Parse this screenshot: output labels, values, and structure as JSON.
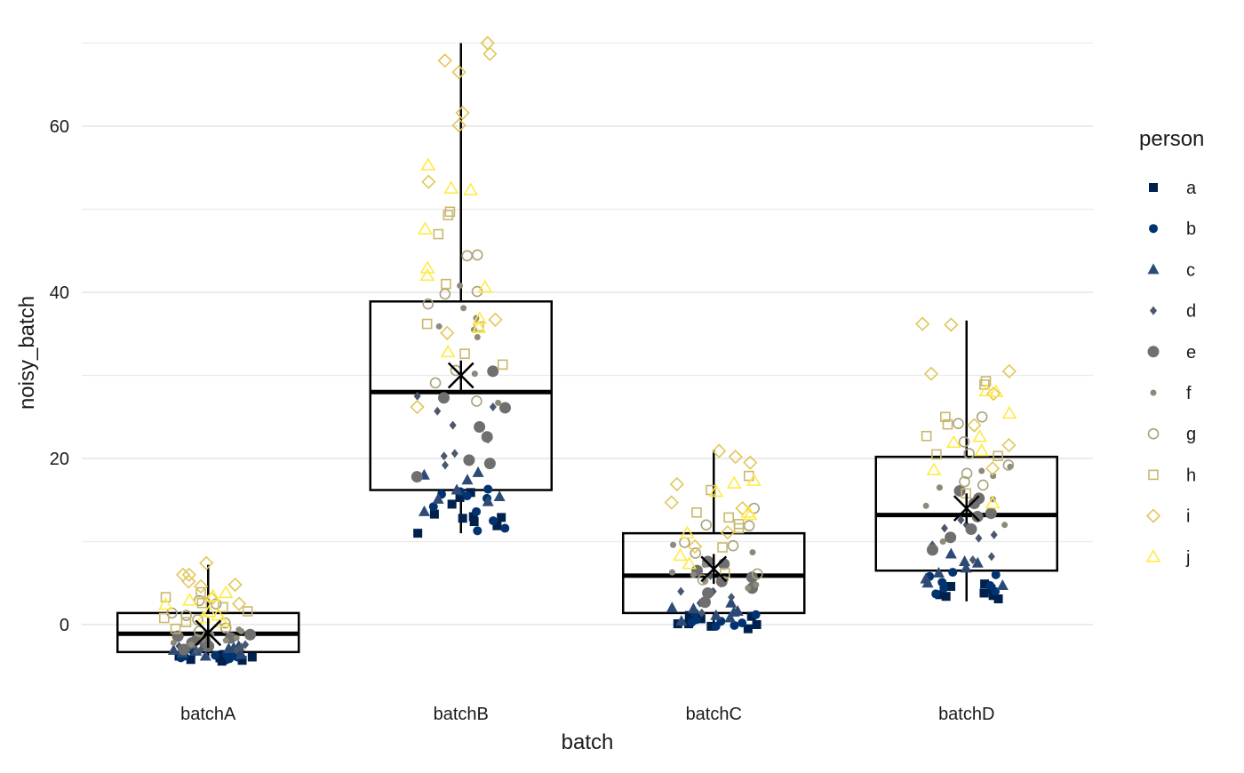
{
  "chart_data": {
    "type": "box",
    "title": "",
    "xlabel": "batch",
    "ylabel": "noisy_batch",
    "ylim": [
      -10,
      70
    ],
    "yticks": [
      0,
      20,
      40,
      60
    ],
    "grid": true,
    "legend_position": "right",
    "legend": {
      "title": "person",
      "entries": [
        {
          "label": "a",
          "shape": "square-filled",
          "color": "#00204D"
        },
        {
          "label": "b",
          "shape": "circle-filled",
          "color": "#00336F"
        },
        {
          "label": "c",
          "shape": "triangle-filled",
          "color": "#2D4A76"
        },
        {
          "label": "d",
          "shape": "diamond-filled",
          "color": "#4A576C"
        },
        {
          "label": "e",
          "shape": "circle-filled-large",
          "color": "#6F6F70"
        },
        {
          "label": "f",
          "shape": "circle-filled-small",
          "color": "#8C8A7A"
        },
        {
          "label": "g",
          "shape": "circle-open",
          "color": "#AAA27A"
        },
        {
          "label": "h",
          "shape": "square-open",
          "color": "#C9B86D"
        },
        {
          "label": "i",
          "shape": "diamond-open",
          "color": "#E2C659"
        },
        {
          "label": "j",
          "shape": "triangle-open",
          "color": "#FFEA46"
        }
      ]
    },
    "categories": [
      "batchA",
      "batchB",
      "batchC",
      "batchD"
    ],
    "boxes": [
      {
        "category": "batchA",
        "q1": -3.3,
        "median": -1.1,
        "q3": 1.4,
        "whisker_low": -4.3,
        "whisker_high": 7.2,
        "mean": -1.0
      },
      {
        "category": "batchB",
        "q1": 16.2,
        "median": 28.0,
        "q3": 38.9,
        "whisker_low": 11.0,
        "whisker_high": 70.0,
        "mean": 30.0
      },
      {
        "category": "batchC",
        "q1": 1.4,
        "median": 5.9,
        "q3": 11.0,
        "whisker_low": -0.6,
        "whisker_high": 21.0,
        "mean": 6.7
      },
      {
        "category": "batchD",
        "q1": 6.5,
        "median": 13.2,
        "q3": 20.2,
        "whisker_low": 2.8,
        "whisker_high": 36.6,
        "mean": 14.0
      }
    ],
    "points": [
      {
        "category": "batchA",
        "person": "a",
        "values": [
          -4.4,
          -4.2,
          -4.0,
          -3.9,
          -4.2,
          -3.6,
          -3.8,
          -4.3
        ]
      },
      {
        "category": "batchA",
        "person": "b",
        "values": [
          -3.6,
          -3.9,
          -4.1,
          -3.3,
          -3.5,
          -4.0,
          -3.7,
          -3.8
        ]
      },
      {
        "category": "batchA",
        "person": "c",
        "values": [
          -3.4,
          -2.8,
          -3.6,
          -2.6,
          -3.1,
          -3.8,
          -2.9,
          -3.2
        ]
      },
      {
        "category": "batchA",
        "person": "d",
        "values": [
          -2.9,
          -3.2,
          -2.4,
          -2.7,
          -3.0,
          -2.2,
          -3.1,
          -2.6
        ]
      },
      {
        "category": "batchA",
        "person": "e",
        "values": [
          -1.4,
          -2.2,
          -1.8,
          -2.6,
          -1.2,
          -2.0,
          -1.6,
          -3.0
        ]
      },
      {
        "category": "batchA",
        "person": "f",
        "values": [
          -1.8,
          -0.8,
          -1.6,
          -2.4,
          -1.2,
          -0.6,
          -1.9,
          -2.2
        ]
      },
      {
        "category": "batchA",
        "person": "g",
        "values": [
          2.5,
          1.4,
          0.2,
          2.9,
          -0.4,
          1.1,
          0.6,
          -0.8
        ]
      },
      {
        "category": "batchA",
        "person": "h",
        "values": [
          3.9,
          1.6,
          2.6,
          3.3,
          0.3,
          -0.5,
          2.1,
          0.8
        ]
      },
      {
        "category": "batchA",
        "person": "i",
        "values": [
          6.0,
          5.2,
          4.6,
          6.0,
          4.8,
          7.4,
          3.1,
          2.5
        ]
      },
      {
        "category": "batchA",
        "person": "j",
        "values": [
          1.1,
          3.8,
          2.4,
          3.4,
          0.8,
          1.5,
          0.3,
          2.9
        ]
      },
      {
        "category": "batchB",
        "person": "a",
        "values": [
          15.3,
          12.9,
          13.3,
          12.8,
          11.9,
          15.9,
          11.0,
          13.0,
          12.4,
          14.5
        ]
      },
      {
        "category": "batchB",
        "person": "b",
        "values": [
          16.3,
          11.3,
          15.7,
          15.2,
          11.6,
          16.0,
          14.2,
          15.5,
          13.6,
          12.5
        ]
      },
      {
        "category": "batchB",
        "person": "c",
        "values": [
          17.4,
          18.3,
          18.0,
          15.4,
          13.6,
          15.1,
          16.2,
          14.8
        ]
      },
      {
        "category": "batchB",
        "person": "d",
        "values": [
          20.3,
          26.2,
          25.7,
          22.3,
          24.0,
          20.6,
          27.5,
          19.2
        ]
      },
      {
        "category": "batchB",
        "person": "e",
        "values": [
          23.8,
          19.4,
          22.6,
          26.1,
          19.8,
          30.5,
          27.3,
          17.8
        ]
      },
      {
        "category": "batchB",
        "person": "f",
        "values": [
          35.9,
          38.1,
          35.5,
          34.6,
          36.9,
          40.8,
          30.2,
          26.7
        ]
      },
      {
        "category": "batchB",
        "person": "g",
        "values": [
          40.1,
          38.6,
          44.4,
          29.1,
          26.9,
          30.6,
          39.8,
          44.5
        ]
      },
      {
        "category": "batchB",
        "person": "h",
        "values": [
          49.3,
          49.7,
          47.0,
          41.0,
          36.2,
          32.6,
          31.3,
          35.9
        ]
      },
      {
        "category": "batchB",
        "person": "i",
        "values": [
          61.6,
          68.7,
          70.0,
          67.9,
          66.5,
          60.1,
          53.3,
          36.7,
          35.1,
          26.2
        ]
      },
      {
        "category": "batchB",
        "person": "j",
        "values": [
          52.3,
          52.5,
          47.6,
          55.3,
          42.0,
          42.9,
          40.6,
          36.8,
          35.7,
          32.8
        ]
      },
      {
        "category": "batchC",
        "person": "a",
        "values": [
          0.1,
          -0.2,
          1.0,
          0.8,
          0.1,
          -0.5,
          0.7,
          0.0,
          1.1,
          0.6
        ]
      },
      {
        "category": "batchC",
        "person": "b",
        "values": [
          0.4,
          1.2,
          0.3,
          -0.1,
          0.6,
          0.2,
          1.4,
          -0.2
        ]
      },
      {
        "category": "batchC",
        "person": "c",
        "values": [
          1.5,
          1.1,
          2.6,
          0.8,
          1.9,
          0.4,
          1.6,
          2.0
        ]
      },
      {
        "category": "batchC",
        "person": "d",
        "values": [
          4.0,
          4.0,
          5.9,
          1.4,
          3.3,
          5.4,
          5.0,
          2.6
        ]
      },
      {
        "category": "batchC",
        "person": "e",
        "values": [
          7.6,
          3.8,
          5.2,
          6.5,
          4.4,
          5.7,
          7.3,
          2.7
        ]
      },
      {
        "category": "batchC",
        "person": "f",
        "values": [
          4.4,
          6.0,
          9.6,
          5.2,
          7.2,
          8.7,
          4.8,
          6.3
        ]
      },
      {
        "category": "batchC",
        "person": "g",
        "values": [
          12.0,
          5.4,
          9.9,
          11.9,
          8.6,
          14.0,
          9.5,
          6.1
        ]
      },
      {
        "category": "batchC",
        "person": "h",
        "values": [
          12.1,
          16.2,
          12.9,
          17.9,
          13.5,
          11.6,
          9.3,
          6.2
        ]
      },
      {
        "category": "batchC",
        "person": "i",
        "values": [
          20.9,
          16.9,
          19.5,
          20.2,
          14.7,
          11.1,
          9.4,
          14.0
        ]
      },
      {
        "category": "batchC",
        "person": "j",
        "values": [
          17.0,
          17.3,
          16.0,
          13.5,
          11.0,
          8.3,
          7.3,
          13.2
        ]
      },
      {
        "category": "batchD",
        "person": "a",
        "values": [
          3.5,
          3.4,
          4.6,
          3.1,
          4.3,
          3.8,
          4.9,
          3.6
        ]
      },
      {
        "category": "batchD",
        "person": "b",
        "values": [
          6.0,
          4.0,
          4.7,
          5.1,
          3.7,
          5.8,
          4.4,
          6.3
        ]
      },
      {
        "category": "batchD",
        "person": "c",
        "values": [
          7.6,
          6.8,
          5.0,
          8.5,
          7.4,
          4.7,
          6.2,
          5.5
        ]
      },
      {
        "category": "batchD",
        "person": "d",
        "values": [
          11.6,
          8.2,
          12.0,
          10.4,
          7.8,
          9.6,
          10.8,
          12.6
        ]
      },
      {
        "category": "batchD",
        "person": "e",
        "values": [
          15.2,
          13.0,
          10.5,
          9.0,
          14.6,
          11.5,
          13.4,
          16.1
        ]
      },
      {
        "category": "batchD",
        "person": "f",
        "values": [
          14.3,
          19.0,
          15.1,
          17.9,
          10.0,
          16.5,
          18.5,
          12.0
        ]
      },
      {
        "category": "batchD",
        "person": "g",
        "values": [
          24.2,
          22.0,
          19.2,
          25.0,
          17.2,
          16.8,
          20.6,
          18.2
        ]
      },
      {
        "category": "batchD",
        "person": "h",
        "values": [
          28.9,
          29.3,
          24.1,
          25.0,
          22.7,
          20.5,
          20.3,
          15.8
        ]
      },
      {
        "category": "batchD",
        "person": "i",
        "values": [
          36.1,
          36.2,
          30.2,
          30.5,
          27.8,
          24.0,
          21.6,
          18.8
        ]
      },
      {
        "category": "batchD",
        "person": "j",
        "values": [
          28.1,
          28.0,
          25.4,
          22.6,
          20.9,
          18.6,
          14.6,
          21.9
        ]
      }
    ]
  }
}
